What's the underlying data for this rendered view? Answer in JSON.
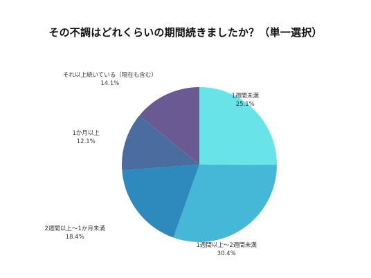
{
  "chart_data": {
    "type": "pie",
    "title": "その不調はどれくらいの期間続きましたか？（単一選択）",
    "slices": [
      {
        "label": "1週間未満",
        "value": 25.1,
        "value_label": "25.1%",
        "color": "#68E3E8"
      },
      {
        "label": "1週間以上～2週間未満",
        "value": 30.4,
        "value_label": "30.4%",
        "color": "#45B8D8"
      },
      {
        "label": "2週間以上～1か月未満",
        "value": 18.4,
        "value_label": "18.4%",
        "color": "#2E89BC"
      },
      {
        "label": "1か月以上",
        "value": 12.1,
        "value_label": "12.1%",
        "color": "#4A6C9E"
      },
      {
        "label": "それ以上続いている（現在も含む）",
        "value": 14.1,
        "value_label": "14.1%",
        "color": "#695A93"
      }
    ],
    "start_angle": "12 o'clock",
    "direction": "clockwise"
  }
}
